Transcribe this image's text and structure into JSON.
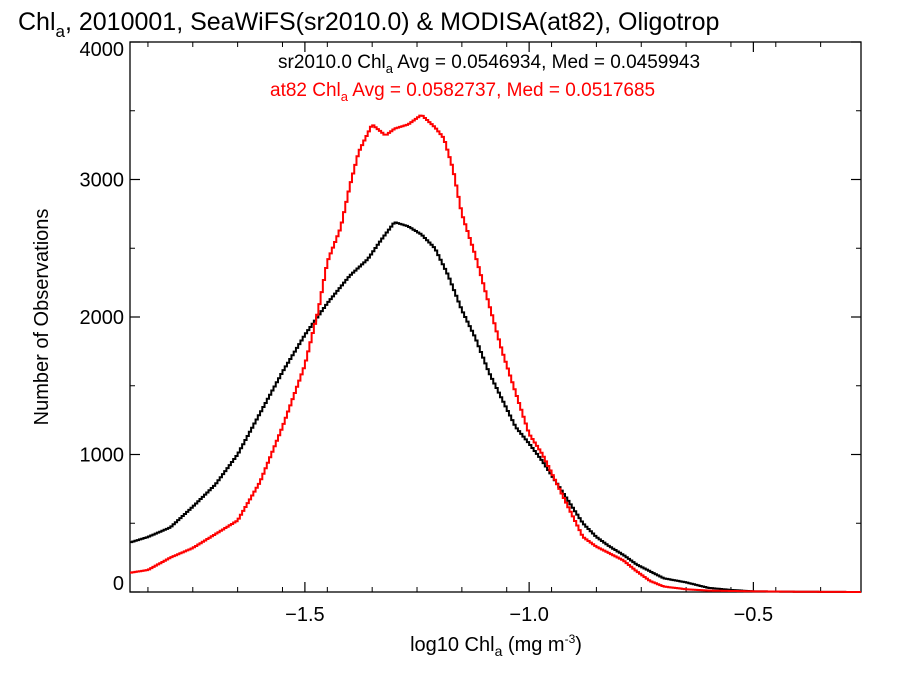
{
  "chart_data": {
    "type": "line",
    "title": {
      "prefix": "Chl",
      "sub": "a",
      "rest": ", 2010001, SeaWiFS(sr2010.0) & MODISA(at82), Oligotrop"
    },
    "xlabel": {
      "prefix": "log10 Chl",
      "sub": "a",
      "mid": " (mg m",
      "sup": "-3",
      "end": ")"
    },
    "ylabel": "Number of Observations",
    "xlim": [
      -1.89,
      -0.26
    ],
    "ylim": [
      0,
      4000
    ],
    "x_ticks": [
      {
        "value": -1.5,
        "label": "−1.5"
      },
      {
        "value": -1.0,
        "label": "−1.0"
      },
      {
        "value": -0.5,
        "label": "−0.5"
      }
    ],
    "y_ticks": [
      {
        "value": 0,
        "label": "0"
      },
      {
        "value": 1000,
        "label": "1000"
      },
      {
        "value": 2000,
        "label": "2000"
      },
      {
        "value": 3000,
        "label": "3000"
      },
      {
        "value": 4000,
        "label": "4000"
      }
    ],
    "annotations": [
      {
        "prefix": "sr2010.0 Chl",
        "sub": "a",
        "rest": " Avg = 0.0546934, Med = 0.0459943",
        "color": "#000000"
      },
      {
        "prefix": "at82 Chl",
        "sub": "a",
        "rest": " Avg = 0.0582737, Med = 0.0517685",
        "color": "#ff0000"
      }
    ],
    "series": [
      {
        "color": "#000000",
        "points": [
          [
            -1.89,
            360
          ],
          [
            -1.85,
            400
          ],
          [
            -1.8,
            470
          ],
          [
            -1.75,
            620
          ],
          [
            -1.7,
            780
          ],
          [
            -1.65,
            1000
          ],
          [
            -1.6,
            1300
          ],
          [
            -1.55,
            1600
          ],
          [
            -1.5,
            1870
          ],
          [
            -1.45,
            2100
          ],
          [
            -1.4,
            2300
          ],
          [
            -1.36,
            2420
          ],
          [
            -1.33,
            2560
          ],
          [
            -1.3,
            2690
          ],
          [
            -1.27,
            2660
          ],
          [
            -1.24,
            2600
          ],
          [
            -1.21,
            2500
          ],
          [
            -1.18,
            2300
          ],
          [
            -1.15,
            2050
          ],
          [
            -1.12,
            1850
          ],
          [
            -1.09,
            1600
          ],
          [
            -1.06,
            1400
          ],
          [
            -1.03,
            1200
          ],
          [
            -1.0,
            1080
          ],
          [
            -0.97,
            950
          ],
          [
            -0.94,
            800
          ],
          [
            -0.91,
            650
          ],
          [
            -0.88,
            500
          ],
          [
            -0.85,
            400
          ],
          [
            -0.82,
            330
          ],
          [
            -0.79,
            270
          ],
          [
            -0.76,
            200
          ],
          [
            -0.73,
            150
          ],
          [
            -0.7,
            100
          ],
          [
            -0.65,
            70
          ],
          [
            -0.6,
            30
          ],
          [
            -0.55,
            15
          ],
          [
            -0.5,
            5
          ],
          [
            -0.4,
            2
          ],
          [
            -0.26,
            0
          ]
        ]
      },
      {
        "color": "#ff0000",
        "points": [
          [
            -1.89,
            140
          ],
          [
            -1.85,
            160
          ],
          [
            -1.8,
            250
          ],
          [
            -1.75,
            320
          ],
          [
            -1.7,
            420
          ],
          [
            -1.65,
            520
          ],
          [
            -1.6,
            800
          ],
          [
            -1.55,
            1200
          ],
          [
            -1.5,
            1650
          ],
          [
            -1.47,
            2050
          ],
          [
            -1.45,
            2400
          ],
          [
            -1.42,
            2650
          ],
          [
            -1.4,
            2950
          ],
          [
            -1.38,
            3200
          ],
          [
            -1.35,
            3400
          ],
          [
            -1.32,
            3320
          ],
          [
            -1.3,
            3370
          ],
          [
            -1.27,
            3400
          ],
          [
            -1.24,
            3470
          ],
          [
            -1.21,
            3380
          ],
          [
            -1.19,
            3300
          ],
          [
            -1.17,
            3080
          ],
          [
            -1.15,
            2750
          ],
          [
            -1.12,
            2450
          ],
          [
            -1.09,
            2100
          ],
          [
            -1.06,
            1750
          ],
          [
            -1.03,
            1450
          ],
          [
            -1.0,
            1150
          ],
          [
            -0.97,
            1000
          ],
          [
            -0.94,
            800
          ],
          [
            -0.91,
            600
          ],
          [
            -0.88,
            400
          ],
          [
            -0.85,
            330
          ],
          [
            -0.82,
            280
          ],
          [
            -0.79,
            230
          ],
          [
            -0.76,
            150
          ],
          [
            -0.73,
            80
          ],
          [
            -0.7,
            40
          ],
          [
            -0.65,
            20
          ],
          [
            -0.6,
            10
          ],
          [
            -0.5,
            5
          ],
          [
            -0.4,
            2
          ],
          [
            -0.26,
            0
          ]
        ]
      }
    ]
  }
}
